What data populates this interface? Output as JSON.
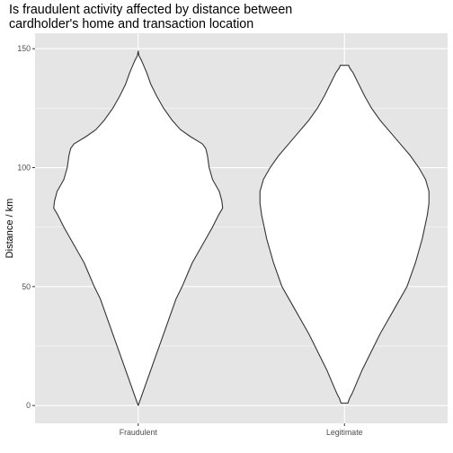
{
  "chart_data": {
    "type": "violin",
    "title_lines": [
      "Is fraudulent activity affected by distance between",
      "cardholder's home and transaction location"
    ],
    "xlabel": "",
    "ylabel": "Distance / km",
    "categories": [
      "Fraudulent",
      "Legitimate"
    ],
    "ylim": [
      -7.5,
      156.5
    ],
    "y_ticks": [
      0,
      50,
      100,
      150
    ],
    "y_tick_labels": [
      "0",
      "50",
      "100",
      "150"
    ],
    "grid": true,
    "panel_background": "#e5e5e5",
    "grid_color": "#ffffff",
    "violin_fill": "#ffffff",
    "violin_stroke": "#333333",
    "violins": [
      {
        "category": "Fraudulent",
        "profile": [
          [
            0,
            0.0
          ],
          [
            5,
            0.05
          ],
          [
            10,
            0.1
          ],
          [
            15,
            0.15
          ],
          [
            20,
            0.2
          ],
          [
            25,
            0.25
          ],
          [
            30,
            0.3
          ],
          [
            35,
            0.35
          ],
          [
            40,
            0.4
          ],
          [
            45,
            0.45
          ],
          [
            50,
            0.52
          ],
          [
            55,
            0.58
          ],
          [
            60,
            0.64
          ],
          [
            65,
            0.72
          ],
          [
            70,
            0.8
          ],
          [
            75,
            0.88
          ],
          [
            80,
            0.95
          ],
          [
            83,
            1.0
          ],
          [
            86,
            0.99
          ],
          [
            90,
            0.96
          ],
          [
            95,
            0.88
          ],
          [
            100,
            0.84
          ],
          [
            105,
            0.82
          ],
          [
            108,
            0.8
          ],
          [
            110,
            0.76
          ],
          [
            113,
            0.62
          ],
          [
            116,
            0.5
          ],
          [
            120,
            0.4
          ],
          [
            125,
            0.3
          ],
          [
            130,
            0.22
          ],
          [
            135,
            0.15
          ],
          [
            140,
            0.1
          ],
          [
            145,
            0.04
          ],
          [
            147,
            0.01
          ],
          [
            149,
            0.0
          ]
        ]
      },
      {
        "category": "Legitimate",
        "profile": [
          [
            1,
            0.04
          ],
          [
            3,
            0.06
          ],
          [
            5,
            0.09
          ],
          [
            10,
            0.15
          ],
          [
            15,
            0.21
          ],
          [
            20,
            0.28
          ],
          [
            25,
            0.35
          ],
          [
            30,
            0.42
          ],
          [
            35,
            0.5
          ],
          [
            40,
            0.58
          ],
          [
            45,
            0.66
          ],
          [
            50,
            0.74
          ],
          [
            55,
            0.79
          ],
          [
            60,
            0.84
          ],
          [
            65,
            0.88
          ],
          [
            70,
            0.92
          ],
          [
            75,
            0.95
          ],
          [
            80,
            0.98
          ],
          [
            85,
            1.0
          ],
          [
            90,
            1.0
          ],
          [
            95,
            0.96
          ],
          [
            100,
            0.88
          ],
          [
            105,
            0.78
          ],
          [
            110,
            0.66
          ],
          [
            115,
            0.54
          ],
          [
            120,
            0.42
          ],
          [
            125,
            0.32
          ],
          [
            130,
            0.24
          ],
          [
            135,
            0.17
          ],
          [
            140,
            0.1
          ],
          [
            142,
            0.06
          ],
          [
            143,
            0.05
          ]
        ]
      }
    ]
  }
}
